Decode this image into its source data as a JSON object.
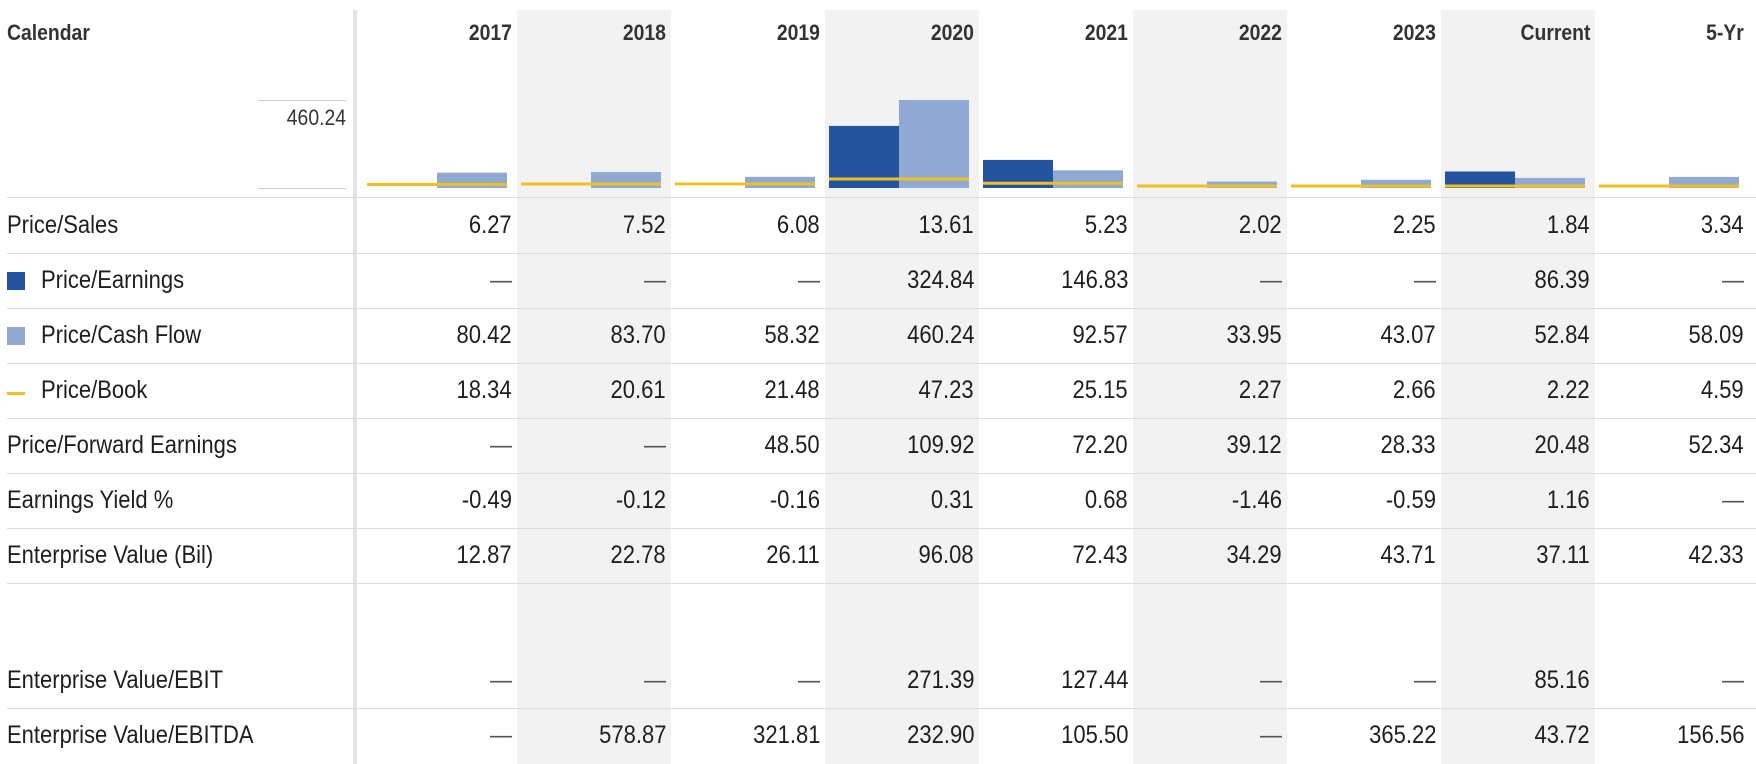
{
  "header": {
    "calendar_label": "Calendar",
    "columns": [
      "2017",
      "2018",
      "2019",
      "2020",
      "2021",
      "2022",
      "2023",
      "Current",
      "5-Yr"
    ]
  },
  "scale_label": "460.24",
  "rows": [
    {
      "label": "Price/Sales",
      "legend": null,
      "values": [
        "6.27",
        "7.52",
        "6.08",
        "13.61",
        "5.23",
        "2.02",
        "2.25",
        "1.84",
        "3.34"
      ]
    },
    {
      "label": "Price/Earnings",
      "legend": "box-dark",
      "values": [
        "—",
        "—",
        "—",
        "324.84",
        "146.83",
        "—",
        "—",
        "86.39",
        "—"
      ]
    },
    {
      "label": "Price/Cash Flow",
      "legend": "box-light",
      "values": [
        "80.42",
        "83.70",
        "58.32",
        "460.24",
        "92.57",
        "33.95",
        "43.07",
        "52.84",
        "58.09"
      ]
    },
    {
      "label": "Price/Book",
      "legend": "line-yellow",
      "values": [
        "18.34",
        "20.61",
        "21.48",
        "47.23",
        "25.15",
        "2.27",
        "2.66",
        "2.22",
        "4.59"
      ]
    },
    {
      "label": "Price/Forward Earnings",
      "legend": null,
      "values": [
        "—",
        "—",
        "48.50",
        "109.92",
        "72.20",
        "39.12",
        "28.33",
        "20.48",
        "52.34"
      ]
    },
    {
      "label": "Earnings Yield %",
      "legend": null,
      "values": [
        "-0.49",
        "-0.12",
        "-0.16",
        "0.31",
        "0.68",
        "-1.46",
        "-0.59",
        "1.16",
        "—"
      ]
    },
    {
      "label": "Enterprise Value (Bil)",
      "legend": null,
      "values": [
        "12.87",
        "22.78",
        "26.11",
        "96.08",
        "72.43",
        "34.29",
        "43.71",
        "37.11",
        "42.33"
      ]
    },
    {
      "label": "Enterprise Value/EBIT",
      "legend": null,
      "values": [
        "—",
        "—",
        "—",
        "271.39",
        "127.44",
        "—",
        "—",
        "85.16",
        "—"
      ]
    },
    {
      "label": "Enterprise Value/EBITDA",
      "legend": null,
      "values": [
        "—",
        "578.87",
        "321.81",
        "232.90",
        "105.50",
        "—",
        "365.22",
        "43.72",
        "156.56"
      ]
    }
  ],
  "colors": {
    "price_earnings": "#2453a0",
    "price_cash_flow": "#8fa9d3",
    "price_book": "#f0c020",
    "shaded_column": "#f2f2f2"
  },
  "chart_data": {
    "type": "bar",
    "categories": [
      "2017",
      "2018",
      "2019",
      "2020",
      "2021",
      "2022",
      "2023",
      "Current",
      "5-Yr"
    ],
    "ylim": [
      0,
      460.24
    ],
    "series": [
      {
        "name": "Price/Earnings",
        "values": [
          null,
          null,
          null,
          324.84,
          146.83,
          null,
          null,
          86.39,
          null
        ]
      },
      {
        "name": "Price/Cash Flow",
        "values": [
          80.42,
          83.7,
          58.32,
          460.24,
          92.57,
          33.95,
          43.07,
          52.84,
          58.09
        ]
      },
      {
        "name": "Price/Book",
        "values": [
          18.34,
          20.61,
          21.48,
          47.23,
          25.15,
          2.27,
          2.66,
          2.22,
          4.59
        ]
      }
    ]
  }
}
